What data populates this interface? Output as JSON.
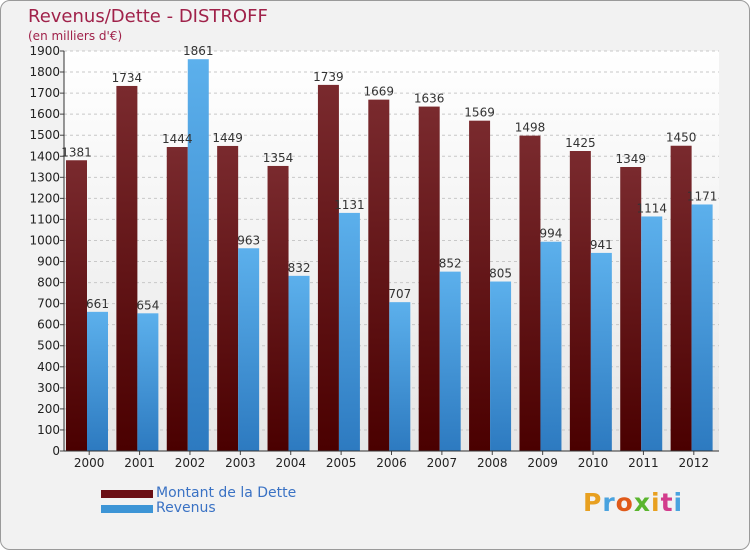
{
  "chart_data": {
    "type": "bar",
    "title": "Revenus/Dette - DISTROFF",
    "subtitle": "(en milliers d'€)",
    "categories": [
      "2000",
      "2001",
      "2002",
      "2003",
      "2004",
      "2005",
      "2006",
      "2007",
      "2008",
      "2009",
      "2010",
      "2011",
      "2012"
    ],
    "series": [
      {
        "name": "Montant de la Dette",
        "color": "#6b0f14",
        "values": [
          1381,
          1734,
          1444,
          1449,
          1354,
          1739,
          1669,
          1636,
          1569,
          1498,
          1425,
          1349,
          1450
        ]
      },
      {
        "name": "Revenus",
        "color": "#3d95d6",
        "values": [
          661,
          654,
          1861,
          963,
          832,
          1131,
          707,
          852,
          805,
          994,
          941,
          1114,
          1171
        ]
      }
    ],
    "ylim": [
      0,
      1900
    ],
    "ytick_step": 100,
    "grid": true,
    "legend_position": "bottom-left"
  },
  "logo": {
    "text": "Proxiti",
    "colors": [
      "#e8a020",
      "#4aa3df",
      "#e05a1a",
      "#5ab52e",
      "#e8a020",
      "#d23c8c",
      "#4aa3df"
    ]
  }
}
